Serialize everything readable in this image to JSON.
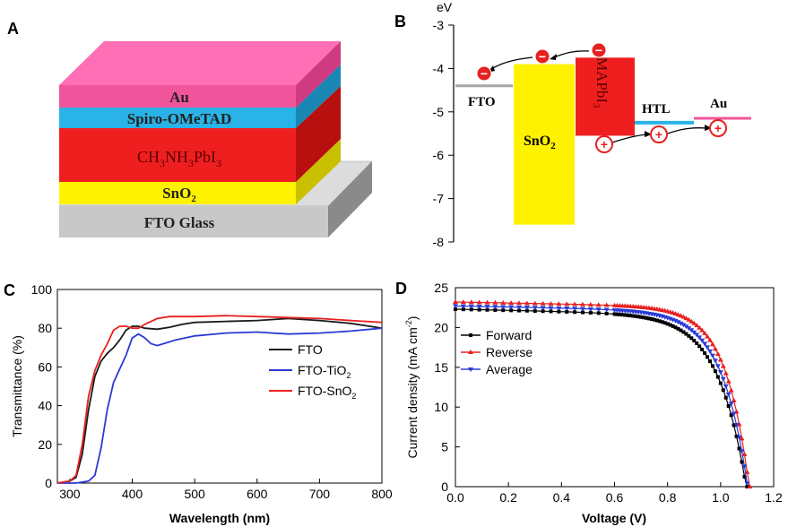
{
  "panels": {
    "a": {
      "label": "A",
      "layers": [
        {
          "name": "Au",
          "color": "#f0559b",
          "text": "Au"
        },
        {
          "name": "Spiro-OMeTAD",
          "color": "#29b3e6",
          "text": "Spiro-OMeTAD"
        },
        {
          "name": "CH3NH3PbI3",
          "color": "#f01f1f",
          "text_parts": [
            "CH",
            "3",
            "NH",
            "3",
            "PbI",
            "3"
          ]
        },
        {
          "name": "SnO2",
          "color": "#fff200",
          "text_parts": [
            "SnO",
            "2"
          ]
        },
        {
          "name": "FTO Glass",
          "color": "#c8c8c8",
          "text": "FTO Glass"
        }
      ]
    },
    "b": {
      "label": "B",
      "unit": "eV",
      "ylim": [
        -8,
        -3
      ],
      "yticks": [
        "-3",
        "-4",
        "-5",
        "-6",
        "-7",
        "-8"
      ],
      "fto_label": "FTO",
      "fto_level": -4.4,
      "sno2_label_parts": [
        "SnO",
        "2"
      ],
      "sno2_cb": -3.9,
      "sno2_vb": -7.6,
      "mapbi_label_parts": [
        "MAPbI",
        "3"
      ],
      "mapbi_cb": -3.75,
      "mapbi_vb": -5.55,
      "htl_label": "HTL",
      "htl_level": -5.25,
      "au_label": "Au",
      "au_level": -5.15,
      "electron_symbol": "−",
      "hole_symbol": "+"
    },
    "c": {
      "label": "C",
      "chart_data": {
        "type": "line",
        "xlabel": "Wavelength (nm)",
        "ylabel": "Transmittance (%)",
        "xlim": [
          280,
          800
        ],
        "ylim": [
          0,
          100
        ],
        "xticks": [
          300,
          400,
          500,
          600,
          700,
          800
        ],
        "yticks": [
          0,
          20,
          40,
          60,
          80,
          100
        ],
        "series": [
          {
            "name": "FTO",
            "color": "#1a1a1a",
            "x": [
              280,
              300,
              310,
              320,
              330,
              340,
              350,
              360,
              370,
              380,
              390,
              400,
              410,
              420,
              440,
              460,
              480,
              500,
              550,
              600,
              650,
              700,
              750,
              780,
              800
            ],
            "y": [
              0,
              1,
              3,
              15,
              38,
              55,
              63,
              67,
              70,
              74,
              79,
              81,
              81,
              80,
              79.5,
              80.5,
              82,
              83,
              83.5,
              84,
              85,
              84,
              82.5,
              81,
              80
            ]
          },
          {
            "name": "FTO-TiO",
            "sub": "2",
            "color": "#2a3ad6",
            "x": [
              280,
              310,
              330,
              340,
              350,
              360,
              370,
              380,
              390,
              400,
              410,
              420,
              430,
              440,
              450,
              470,
              500,
              550,
              600,
              650,
              700,
              750,
              800
            ],
            "y": [
              0,
              0,
              1,
              4,
              18,
              38,
              52,
              59,
              66,
              75,
              77,
              75,
              72,
              71,
              72,
              74,
              76,
              77.5,
              78,
              77,
              77.5,
              78.5,
              80
            ]
          },
          {
            "name": "FTO-SnO",
            "sub": "2",
            "color": "#e82020",
            "x": [
              280,
              300,
              310,
              320,
              330,
              340,
              350,
              360,
              370,
              380,
              390,
              400,
              410,
              420,
              440,
              460,
              480,
              500,
              550,
              600,
              650,
              700,
              750,
              800
            ],
            "y": [
              0,
              1,
              4,
              20,
              45,
              58,
              66,
              72,
              79,
              81,
              81,
              80,
              80,
              82,
              85,
              86,
              86,
              86,
              86.5,
              86,
              85.5,
              85,
              84,
              83
            ]
          }
        ]
      }
    },
    "d": {
      "label": "D",
      "chart_data": {
        "type": "line",
        "xlabel": "Voltage (V)",
        "ylabel_parts": [
          "Current density (mA cm",
          "-2",
          ")"
        ],
        "xlim": [
          0,
          1.2
        ],
        "ylim": [
          0,
          25
        ],
        "xticks": [
          "0.0",
          "0.2",
          "0.4",
          "0.6",
          "0.8",
          "1.0",
          "1.2"
        ],
        "yticks": [
          0,
          5,
          10,
          15,
          20,
          25
        ],
        "series": [
          {
            "name": "Forward",
            "color": "#000000",
            "marker": "square",
            "jsc": 22.3,
            "voc": 1.1,
            "slope": 1.6,
            "knee": 0.66,
            "n": 12
          },
          {
            "name": "Reverse",
            "color": "#e82020",
            "marker": "triangle-up",
            "jsc": 23.2,
            "voc": 1.11,
            "slope": 1.3,
            "knee": 0.74,
            "n": 10
          },
          {
            "name": "Average",
            "color": "#2a3ad6",
            "marker": "triangle-down",
            "jsc": 22.7,
            "voc": 1.105,
            "slope": 1.45,
            "knee": 0.7,
            "n": 11
          }
        ]
      }
    }
  }
}
